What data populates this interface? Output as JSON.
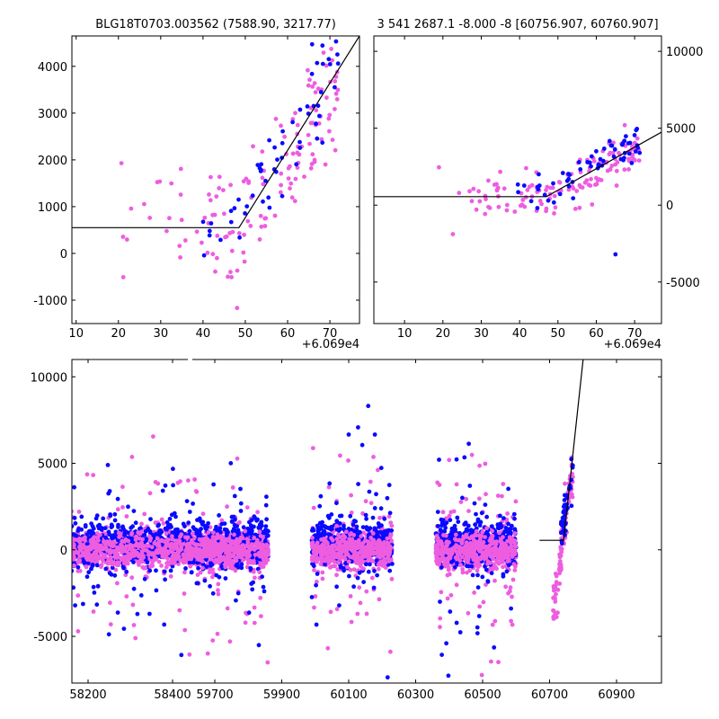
{
  "colors": {
    "blue": "#0a0aff",
    "magenta": "#ee5de0",
    "model": "#000000",
    "background": "#ffffff"
  },
  "chart_data": [
    {
      "id": "top-left",
      "type": "scatter",
      "title": "BLG18T0703.003562 (7588.90, 3217.77)",
      "offset_label": "+6.069e4",
      "xlim": [
        9,
        77
      ],
      "ylim": [
        -1500,
        4650
      ],
      "xticks": [
        10,
        20,
        30,
        40,
        50,
        60,
        70
      ],
      "yticks": [
        -1000,
        0,
        1000,
        2000,
        3000,
        4000
      ],
      "tick_labels_side": "left",
      "model_line": {
        "x": [
          9,
          48.5,
          77
        ],
        "y": [
          550,
          550,
          4650
        ]
      },
      "series": [
        {
          "name": "blue",
          "color": "blue",
          "count": 60,
          "x_range": [
            39,
            72
          ],
          "trend": "rising"
        },
        {
          "name": "magenta",
          "color": "magenta",
          "count": 140,
          "x_range": [
            18,
            72
          ],
          "trend": "rising"
        }
      ]
    },
    {
      "id": "top-right",
      "type": "scatter",
      "title": "3 541 2687.1 -8.000 -8 [60756.907, 60760.907]",
      "offset_label": "+6.069e4",
      "xlim": [
        2,
        77
      ],
      "ylim": [
        -7700,
        11000
      ],
      "xticks": [
        10,
        20,
        30,
        40,
        50,
        60,
        70
      ],
      "yticks": [
        -5000,
        0,
        5000,
        10000
      ],
      "tick_labels_side": "right",
      "model_line": {
        "x": [
          2,
          47,
          77
        ],
        "y": [
          550,
          550,
          4750
        ]
      },
      "series": [
        {
          "name": "blue",
          "color": "blue",
          "count": 60,
          "x_range": [
            39,
            72
          ],
          "trend": "rising"
        },
        {
          "name": "magenta",
          "color": "magenta",
          "count": 140,
          "x_range": [
            18,
            72
          ],
          "trend": "rising"
        }
      ]
    },
    {
      "id": "bottom",
      "type": "scatter",
      "title": "",
      "ylim": [
        -7700,
        11000
      ],
      "yticks": [
        -5000,
        0,
        5000,
        10000
      ],
      "tick_labels_side": "left",
      "xticks": [
        {
          "label": "58200"
        },
        {
          "label": "58400"
        },
        {
          "label": "59700"
        },
        {
          "label": "59900"
        },
        {
          "label": "60100"
        },
        {
          "label": "60300"
        },
        {
          "label": "60500"
        },
        {
          "label": "60700"
        },
        {
          "label": "60900"
        }
      ],
      "seasons": [
        {
          "x_range": [
            58160,
            58440
          ],
          "blue_count": 450,
          "magenta_count": 650
        },
        {
          "x_range": [
            59620,
            59860
          ],
          "blue_count": 450,
          "magenta_count": 650
        },
        {
          "x_range": [
            59990,
            60230
          ],
          "blue_count": 450,
          "magenta_count": 650
        },
        {
          "x_range": [
            60360,
            60600
          ],
          "blue_count": 450,
          "magenta_count": 650
        },
        {
          "x_range": [
            60700,
            60770
          ],
          "blue_count": 40,
          "magenta_count": 90
        }
      ],
      "model_line": {
        "x": [
          60670,
          60742,
          60800
        ],
        "y": [
          550,
          550,
          11000
        ]
      }
    }
  ]
}
